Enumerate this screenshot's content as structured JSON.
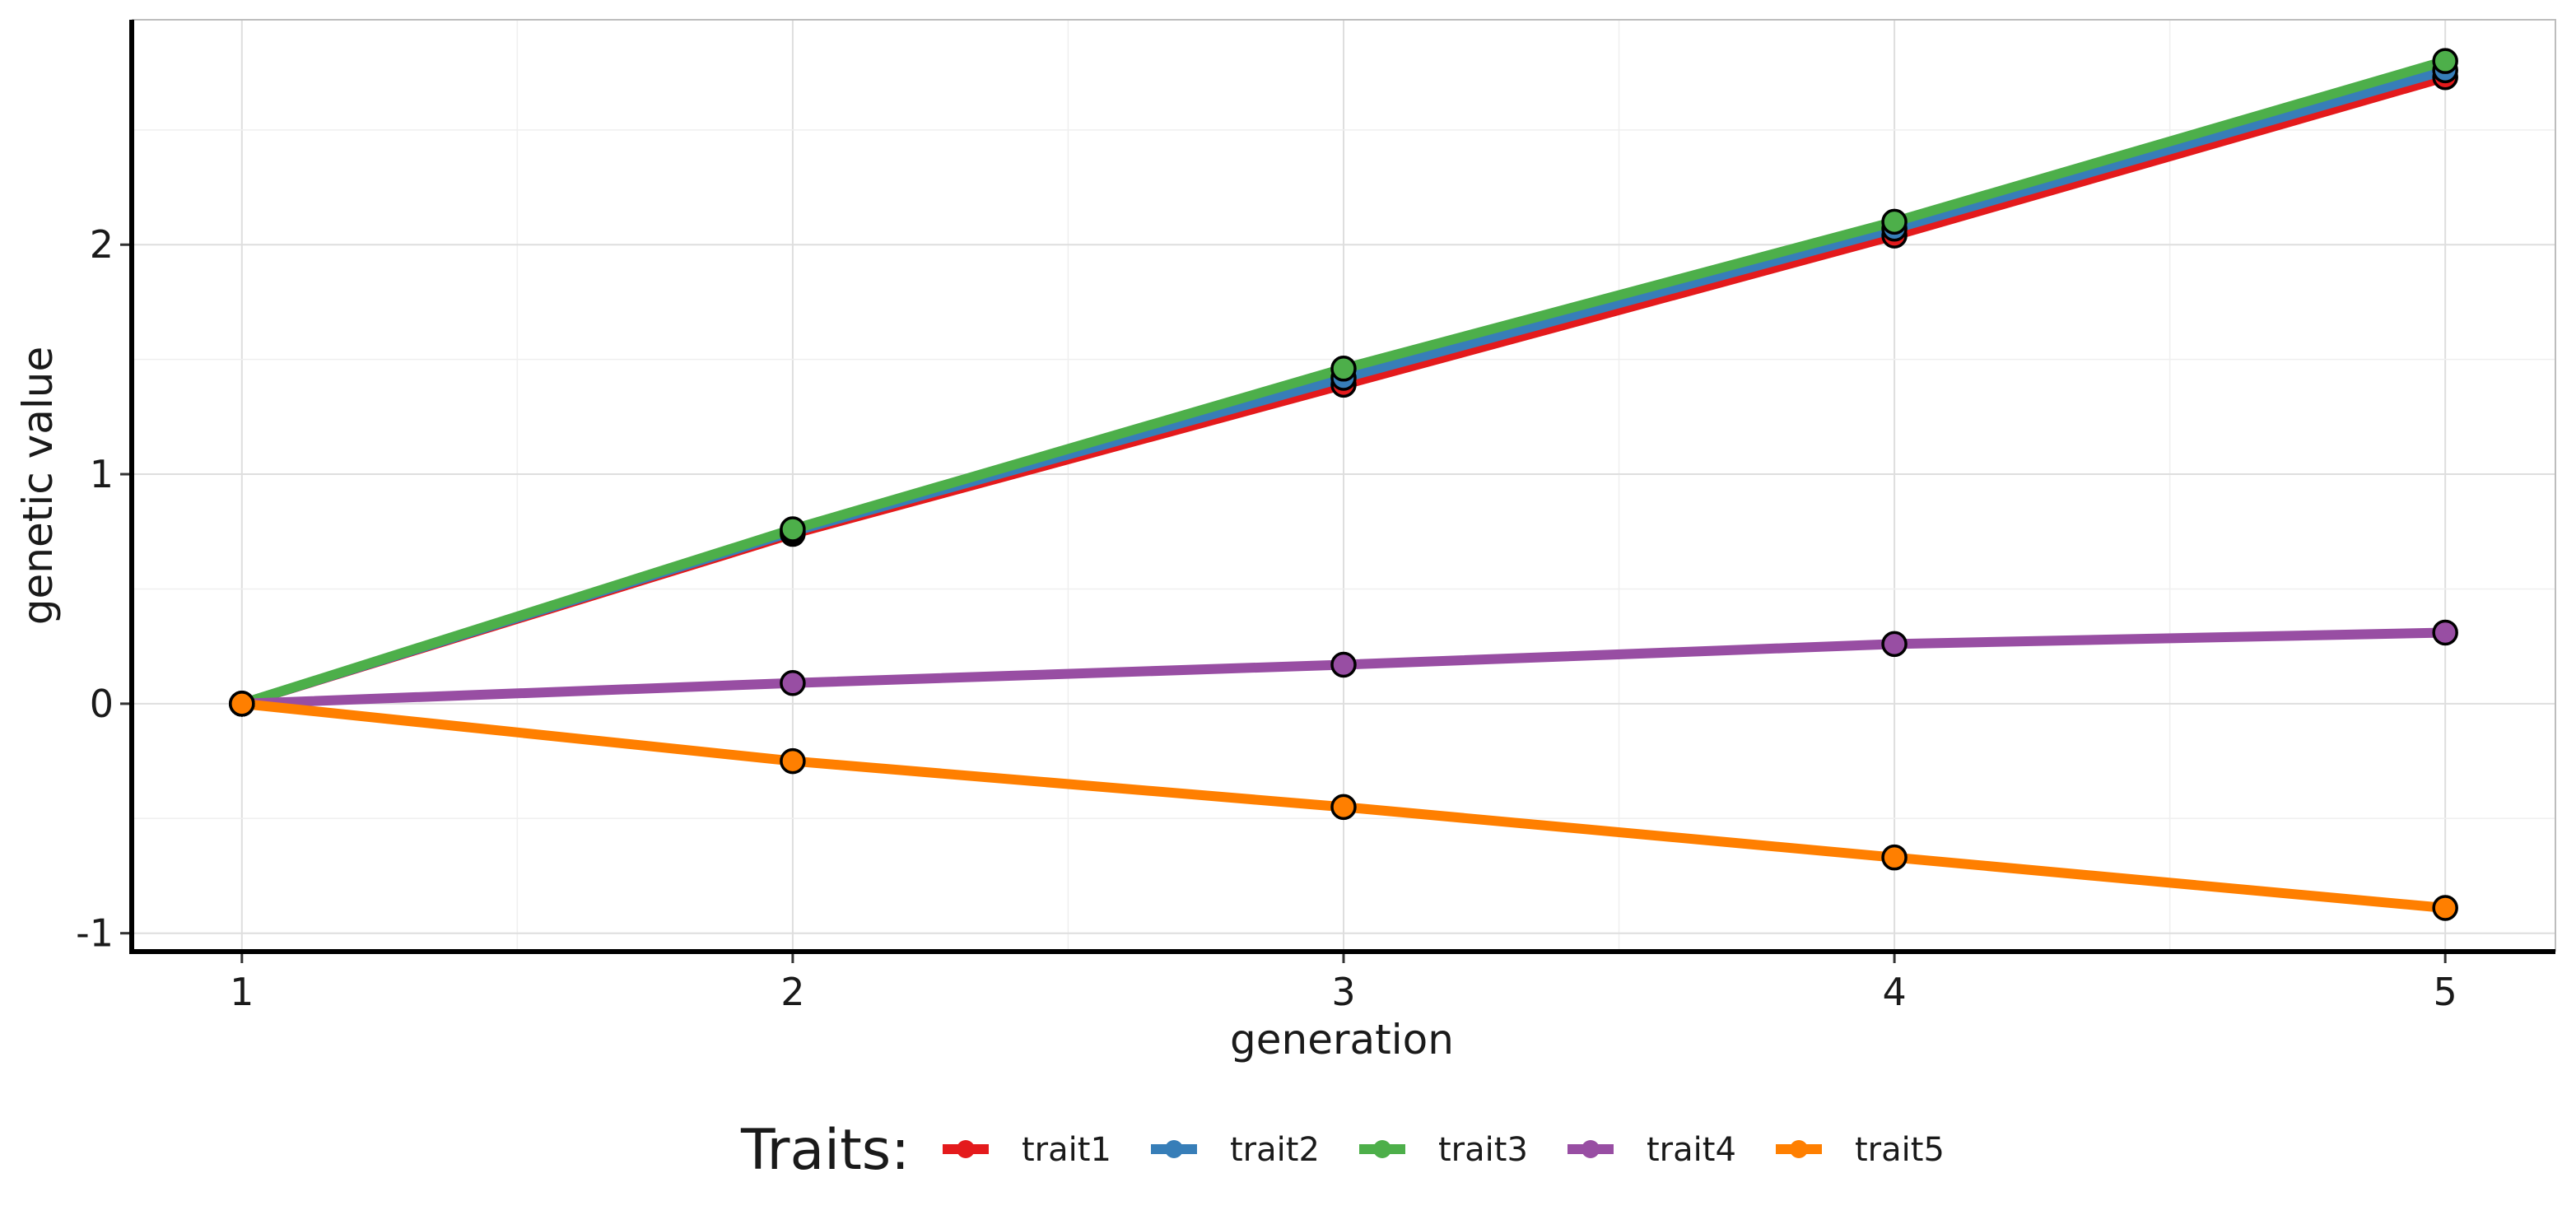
{
  "chart_data": {
    "type": "line",
    "title": "",
    "xlabel": "generation",
    "ylabel": "genetic value",
    "x": [
      1,
      2,
      3,
      4,
      5
    ],
    "xlim": [
      0.8,
      5.2
    ],
    "ylim": [
      -1.08,
      2.98
    ],
    "x_ticks": [
      1,
      2,
      3,
      4,
      5
    ],
    "y_ticks": [
      -1,
      0,
      1,
      2
    ],
    "grid": true,
    "legend_title": "Traits:",
    "legend_position": "bottom",
    "series": [
      {
        "name": "trait1",
        "color": "#E41A1C",
        "values": [
          0,
          0.74,
          1.39,
          2.04,
          2.73
        ]
      },
      {
        "name": "trait2",
        "color": "#377EB8",
        "values": [
          0,
          0.75,
          1.42,
          2.07,
          2.76
        ]
      },
      {
        "name": "trait3",
        "color": "#4DAF4A",
        "values": [
          0,
          0.76,
          1.46,
          2.1,
          2.8
        ]
      },
      {
        "name": "trait4",
        "color": "#984EA3",
        "values": [
          0,
          0.09,
          0.17,
          0.26,
          0.31
        ]
      },
      {
        "name": "trait5",
        "color": "#FF7F00",
        "values": [
          0,
          -0.25,
          -0.45,
          -0.67,
          -0.89
        ]
      }
    ]
  }
}
